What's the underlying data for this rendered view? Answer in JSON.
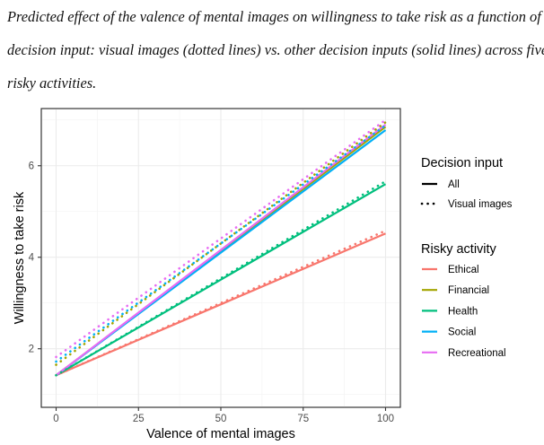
{
  "caption": {
    "line1": "Predicted effect of the valence of mental images on willingness to take risk as a function of",
    "line2": "decision input: visual images (dotted lines) vs. other decision inputs (solid lines) across five",
    "line3": "risky activities."
  },
  "chart_data": {
    "type": "line",
    "xlabel": "Valence of mental images",
    "ylabel": "Willingness to take risk",
    "xlim": [
      -4.5,
      104.5
    ],
    "ylim": [
      0.72,
      7.25
    ],
    "x_ticks": [
      0,
      25,
      50,
      75,
      100
    ],
    "y_ticks": [
      2,
      4,
      6
    ],
    "grid": true,
    "legend_position": "right",
    "legend": {
      "decision_input": {
        "title": "Decision input",
        "entries": [
          {
            "label": "All",
            "style": "solid"
          },
          {
            "label": "Visual images",
            "style": "dotted"
          }
        ]
      },
      "risky_activity": {
        "title": "Risky activity",
        "entries": [
          {
            "label": "Ethical",
            "color": "#F8766D"
          },
          {
            "label": "Financial",
            "color": "#A3A500"
          },
          {
            "label": "Health",
            "color": "#00BF7D"
          },
          {
            "label": "Social",
            "color": "#00B0F6"
          },
          {
            "label": "Recreational",
            "color": "#E76BF3"
          }
        ]
      }
    },
    "series": [
      {
        "activity": "Ethical",
        "input": "All",
        "color": "#F8766D",
        "style": "solid",
        "x": [
          0,
          100
        ],
        "y": [
          1.42,
          4.52
        ]
      },
      {
        "activity": "Financial",
        "input": "All",
        "color": "#A3A500",
        "style": "solid",
        "x": [
          0,
          100
        ],
        "y": [
          1.42,
          6.85
        ]
      },
      {
        "activity": "Health",
        "input": "All",
        "color": "#00BF7D",
        "style": "solid",
        "x": [
          0,
          100
        ],
        "y": [
          1.42,
          5.6
        ]
      },
      {
        "activity": "Social",
        "input": "All",
        "color": "#00B0F6",
        "style": "solid",
        "x": [
          0,
          100
        ],
        "y": [
          1.42,
          6.78
        ]
      },
      {
        "activity": "Recreational",
        "input": "All",
        "color": "#E76BF3",
        "style": "solid",
        "x": [
          0,
          100
        ],
        "y": [
          1.42,
          6.9
        ]
      },
      {
        "activity": "Ethical",
        "input": "Visual images",
        "color": "#F8766D",
        "style": "dotted",
        "x": [
          0,
          100
        ],
        "y": [
          1.42,
          4.58
        ]
      },
      {
        "activity": "Financial",
        "input": "Visual images",
        "color": "#A3A500",
        "style": "dotted",
        "x": [
          0,
          100
        ],
        "y": [
          1.65,
          6.95
        ]
      },
      {
        "activity": "Health",
        "input": "Visual images",
        "color": "#00BF7D",
        "style": "dotted",
        "x": [
          0,
          100
        ],
        "y": [
          1.42,
          5.66
        ]
      },
      {
        "activity": "Social",
        "input": "Visual images",
        "color": "#00B0F6",
        "style": "dotted",
        "x": [
          0,
          100
        ],
        "y": [
          1.72,
          6.88
        ]
      },
      {
        "activity": "Recreational",
        "input": "Visual images",
        "color": "#E76BF3",
        "style": "dotted",
        "x": [
          0,
          100
        ],
        "y": [
          1.82,
          7.0
        ]
      }
    ]
  }
}
